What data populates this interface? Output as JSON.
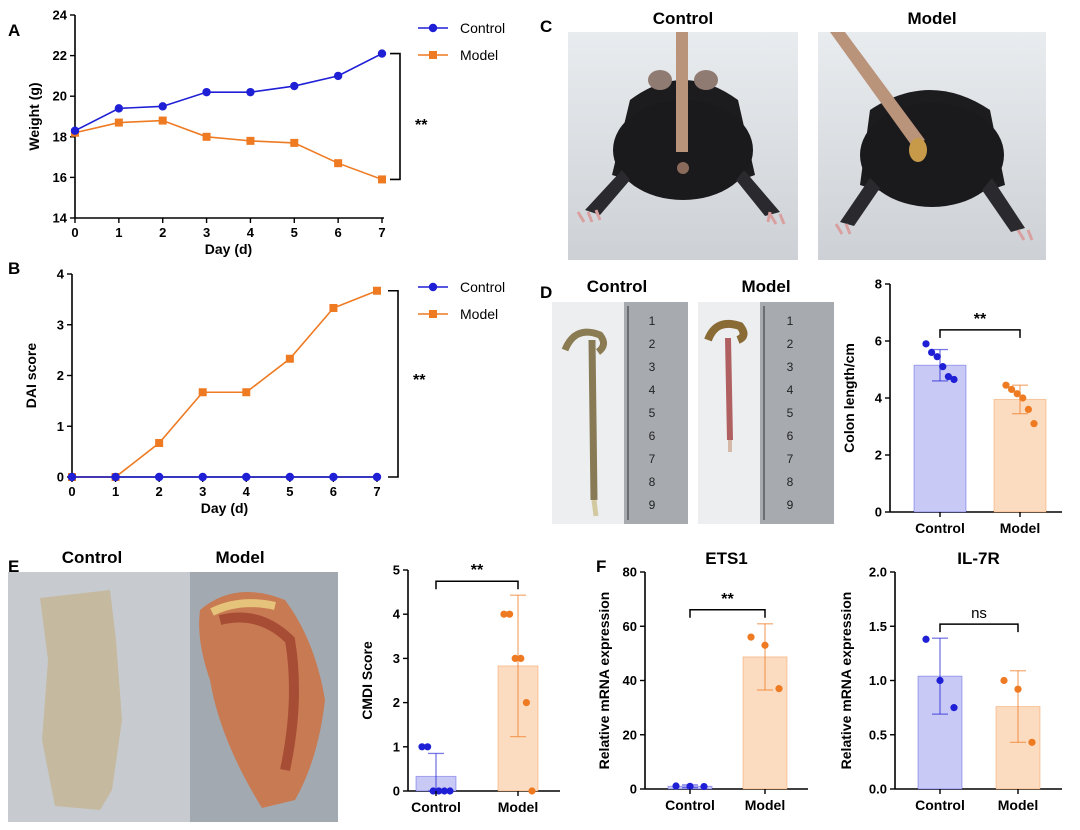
{
  "colors": {
    "control": "#1f1fd6",
    "model": "#ee7a22",
    "control_fill": "#c9c9f6",
    "model_fill": "#fcdcc0"
  },
  "panels": {
    "a": {
      "letter": "A"
    },
    "b": {
      "letter": "B"
    },
    "c": {
      "letter": "C",
      "labels": [
        "Control",
        "Model"
      ]
    },
    "d": {
      "letter": "D",
      "labels": [
        "Control",
        "Model"
      ],
      "ruler_numbers": [
        "1",
        "2",
        "3",
        "4",
        "5",
        "6",
        "7",
        "8",
        "9"
      ]
    },
    "e": {
      "letter": "E",
      "labels": [
        "Control",
        "Model"
      ]
    },
    "f": {
      "letter": "F"
    }
  },
  "chart_data": [
    {
      "id": "weight",
      "type": "line",
      "panel": "A",
      "title": "",
      "xlabel": "Day (d)",
      "ylabel": "Weight (g)",
      "x": [
        0,
        1,
        2,
        3,
        4,
        5,
        6,
        7
      ],
      "xticks": [
        "0",
        "1",
        "2",
        "3",
        "4",
        "5",
        "6",
        "7"
      ],
      "ylim": [
        14,
        24
      ],
      "yticks": [
        "14",
        "16",
        "18",
        "20",
        "22",
        "24"
      ],
      "series": [
        {
          "name": "Control",
          "marker": "circle",
          "values": [
            18.3,
            19.4,
            19.5,
            20.2,
            20.2,
            20.5,
            21.0,
            22.1
          ]
        },
        {
          "name": "Model",
          "marker": "square",
          "values": [
            18.2,
            18.7,
            18.8,
            18.0,
            17.8,
            17.7,
            16.7,
            15.9
          ]
        }
      ],
      "significance": "**",
      "legend": "top-right"
    },
    {
      "id": "dai",
      "type": "line",
      "panel": "B",
      "title": "",
      "xlabel": "Day (d)",
      "ylabel": "DAI score",
      "x": [
        0,
        1,
        2,
        3,
        4,
        5,
        6,
        7
      ],
      "xticks": [
        "0",
        "1",
        "2",
        "3",
        "4",
        "5",
        "6",
        "7"
      ],
      "ylim": [
        0,
        4
      ],
      "yticks": [
        "0",
        "1",
        "2",
        "3",
        "4"
      ],
      "series": [
        {
          "name": "Control",
          "marker": "circle",
          "values": [
            0,
            0,
            0,
            0,
            0,
            0,
            0,
            0
          ]
        },
        {
          "name": "Model",
          "marker": "square",
          "values": [
            0,
            0,
            0.67,
            1.67,
            1.67,
            2.33,
            3.33,
            3.67
          ]
        }
      ],
      "significance": "**",
      "legend": "top-right"
    },
    {
      "id": "colon",
      "type": "bar",
      "panel": "D",
      "title": "",
      "xlabel": "",
      "ylabel": "Colon length/cm",
      "categories": [
        "Control",
        "Model"
      ],
      "values": [
        5.15,
        3.95
      ],
      "errors": [
        0.55,
        0.5
      ],
      "points": [
        [
          5.9,
          5.6,
          5.45,
          5.1,
          4.75,
          4.65
        ],
        [
          4.45,
          4.3,
          4.15,
          4.0,
          3.6,
          3.1
        ]
      ],
      "ylim": [
        0,
        8
      ],
      "yticks": [
        "0",
        "2",
        "4",
        "6",
        "8"
      ],
      "significance": "**"
    },
    {
      "id": "cmdi",
      "type": "bar",
      "panel": "E",
      "title": "",
      "xlabel": "",
      "ylabel": "CMDI Score",
      "categories": [
        "Control",
        "Model"
      ],
      "values": [
        0.33,
        2.83
      ],
      "errors": [
        0.52,
        1.6
      ],
      "points": [
        [
          1,
          1,
          0,
          0,
          0,
          0
        ],
        [
          4,
          4,
          3,
          3,
          2,
          0
        ]
      ],
      "ylim": [
        0,
        5
      ],
      "yticks": [
        "0",
        "1",
        "2",
        "3",
        "4",
        "5"
      ],
      "significance": "**"
    },
    {
      "id": "ets1",
      "type": "bar",
      "panel": "F",
      "title": "ETS1",
      "xlabel": "",
      "ylabel": "Relative mRNA expression",
      "categories": [
        "Control",
        "Model"
      ],
      "values": [
        1.0,
        48.7
      ],
      "errors": [
        0.5,
        12.2
      ],
      "points": [
        [
          1.1,
          1.0,
          0.9
        ],
        [
          56,
          53,
          37
        ]
      ],
      "ylim": [
        0,
        80
      ],
      "yticks": [
        "0",
        "20",
        "40",
        "60",
        "80"
      ],
      "significance": "**"
    },
    {
      "id": "il7r",
      "type": "bar",
      "panel": "F",
      "title": "IL-7R",
      "xlabel": "",
      "ylabel": "Relative mRNA expression",
      "categories": [
        "Control",
        "Model"
      ],
      "values": [
        1.04,
        0.76
      ],
      "errors": [
        0.35,
        0.33
      ],
      "points": [
        [
          1.38,
          1.0,
          0.75
        ],
        [
          1.0,
          0.92,
          0.43
        ]
      ],
      "ylim": [
        0,
        2.0
      ],
      "yticks": [
        "0.0",
        "0.5",
        "1.0",
        "1.5",
        "2.0"
      ],
      "significance": "ns"
    }
  ]
}
